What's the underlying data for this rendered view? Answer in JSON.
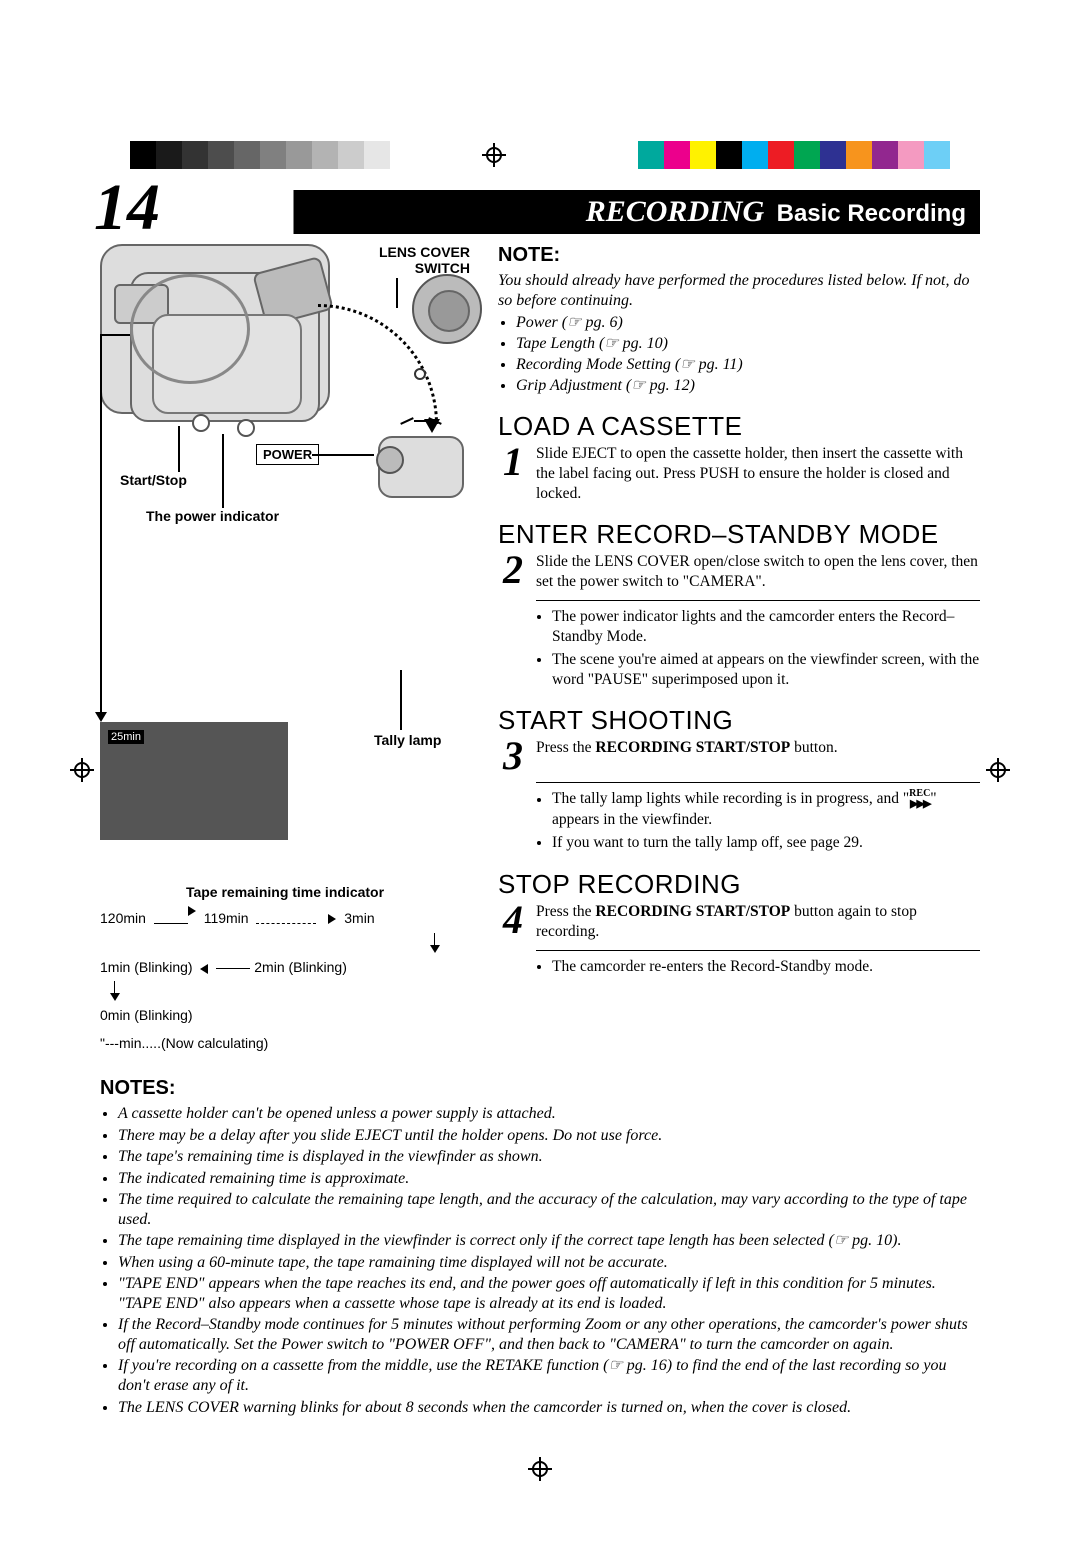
{
  "page_number": "14",
  "header_italic": "RECORDING",
  "header_sub": "Basic Recording",
  "labels": {
    "lens_cover_switch": "LENS COVER\nSWITCH",
    "power": "POWER",
    "start_stop": "Start/Stop",
    "power_indicator": "The power indicator",
    "tally_lamp": "Tally lamp",
    "vf_text": "25min",
    "tape_heading": "Tape remaining time indicator",
    "tape_row1_a": "120min",
    "tape_row1_b": "119min",
    "tape_row1_c": "3min",
    "tape_row2_a": "1min (Blinking)",
    "tape_row2_b": "2min (Blinking)",
    "tape_row3": "0min (Blinking)",
    "tape_row4": "\"---min.....(Now calculating)"
  },
  "note_top": {
    "heading": "NOTE:",
    "intro": "You should already have performed the procedures listed below. If not, do so before continuing.",
    "items": [
      "Power (☞ pg. 6)",
      "Tape Length (☞ pg. 10)",
      "Recording Mode Setting (☞ pg. 11)",
      "Grip Adjustment (☞ pg. 12)"
    ]
  },
  "steps": [
    {
      "num": "1",
      "title": "LOAD A CASSETTE",
      "body": "Slide EJECT to open the cassette holder, then insert the cassette with the label facing out. Press PUSH to ensure the holder is closed and locked.",
      "bullets": []
    },
    {
      "num": "2",
      "title": "ENTER RECORD–STANDBY MODE",
      "body": "Slide the LENS COVER open/close switch to open the lens cover, then set the power switch to \"CAMERA\".",
      "bullets": [
        "The power indicator lights and the camcorder enters the Record–Standby Mode.",
        "The scene you're aimed at appears on the viewfinder screen, with the word \"PAUSE\" superimposed upon it."
      ]
    },
    {
      "num": "3",
      "title": "START SHOOTING",
      "body_html": "Press the <b>RECORDING START/STOP</b> button.",
      "bullets_html": [
        "The tally lamp lights while recording is in progress, and \"<span class='rec-icon'><span class='t'>REC</span><span class='a'>▶▶▶</span></span>\" appears in the viewfinder.",
        "If you want to turn the tally lamp off, see page 29."
      ]
    },
    {
      "num": "4",
      "title": "STOP RECORDING",
      "body_html": "Press the <b>RECORDING START/STOP</b> button again to stop recording.",
      "bullets": [
        "The camcorder re-enters the Record-Standby mode."
      ]
    }
  ],
  "notes_bottom": {
    "heading": "NOTES:",
    "items": [
      "A cassette holder can't be opened unless a power supply is attached.",
      "There may be a delay after you slide EJECT until the holder opens. Do not use force.",
      "The tape's remaining time is displayed in the  viewfinder as shown.",
      "The indicated remaining time is approximate.",
      "The time required to calculate the remaining tape length, and the accuracy of the calculation, may vary according to the type of tape used.",
      "The tape remaining time displayed in the viewfinder is correct only if the correct tape length has been selected (☞ pg. 10).",
      "When using a 60-minute tape, the tape ramaining time displayed will not be accurate.",
      "\"TAPE END\" appears when the tape reaches its end, and the power goes off automatically if left in this condition for 5 minutes. \"TAPE END\" also appears when a cassette whose tape is already at its end is loaded.",
      "If the Record–Standby mode continues for 5 minutes without performing Zoom or any other operations, the camcorder's power shuts off automatically. Set the Power switch to \"POWER OFF\", and then back to \"CAMERA\" to turn the camcorder on again.",
      "If you're recording on a cassette from the middle, use the RETAKE function (☞ pg. 16) to find the end of the last recording so you don't erase any of it.",
      "The LENS COVER warning blinks for about 8 seconds when the camcorder is turned on, when the cover is closed."
    ]
  },
  "cal_left_colors": [
    "#000000",
    "#1a1a1a",
    "#333333",
    "#4d4d4d",
    "#666666",
    "#808080",
    "#999999",
    "#b3b3b3",
    "#cccccc",
    "#e6e6e6",
    "#ffffff"
  ],
  "cal_right_colors": [
    "#00a99d",
    "#ec008c",
    "#fff200",
    "#000000",
    "#00aeef",
    "#ed1c24",
    "#00a651",
    "#2e3192",
    "#f7941d",
    "#92278f",
    "#f49ac1",
    "#6dcff6"
  ]
}
